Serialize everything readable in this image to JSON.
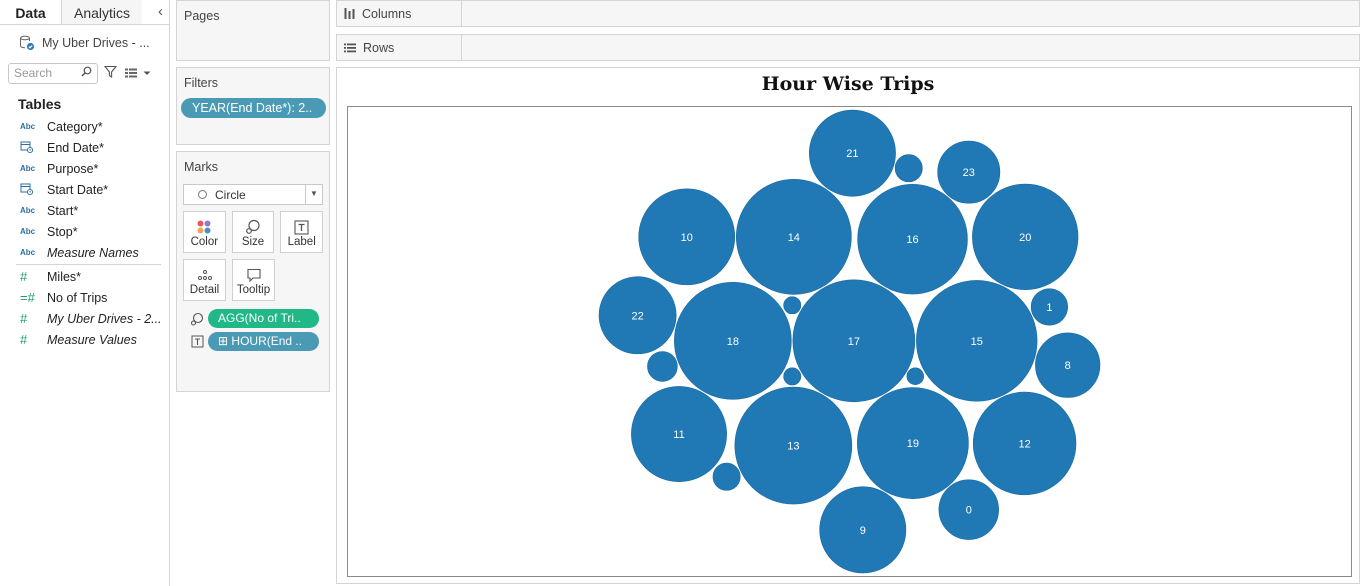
{
  "data_pane": {
    "tab_data": "Data",
    "tab_analytics": "Analytics",
    "datasource": "My Uber Drives - ...",
    "search_placeholder": "Search",
    "tables_title": "Tables",
    "fields": [
      {
        "type": "Abc",
        "label": "Category*"
      },
      {
        "type": "date",
        "label": "End Date*"
      },
      {
        "type": "Abc",
        "label": "Purpose*"
      },
      {
        "type": "date",
        "label": "Start Date*"
      },
      {
        "type": "Abc",
        "label": "Start*"
      },
      {
        "type": "Abc",
        "label": "Stop*"
      },
      {
        "type": "Abc",
        "label": "Measure Names"
      },
      {
        "type": "#",
        "label": "Miles*"
      },
      {
        "type": "=#",
        "label": "No of Trips"
      },
      {
        "type": "#",
        "label": "My Uber Drives - 2..."
      },
      {
        "type": "#",
        "label": "Measure Values"
      }
    ]
  },
  "cards": {
    "pages_title": "Pages",
    "filters_title": "Filters",
    "filter_pill": "YEAR(End Date*): 2..",
    "marks_title": "Marks",
    "mark_type": "Circle",
    "mark_buttons": [
      "Color",
      "Size",
      "Label",
      "Detail",
      "Tooltip"
    ],
    "mark_pill_size": "AGG(No of Tri..",
    "mark_pill_label": "HOUR(End ..",
    "mark_pill_label_prefix": "⊞"
  },
  "shelves": {
    "columns": "Columns",
    "rows": "Rows"
  },
  "view": {
    "title": "Hour Wise Trips"
  },
  "colors": {
    "bubble": "#2078b4",
    "green_pill": "#1fb886",
    "blue_pill": "#4a9ab6"
  },
  "chart_data": {
    "type": "packed-bubble",
    "title": "Hour Wise Trips",
    "size_measure": "AGG(No of Trips)",
    "label_dimension": "HOUR(End Date*)",
    "bubbles": [
      {
        "label": "17",
        "value": 100
      },
      {
        "label": "18",
        "value": 92
      },
      {
        "label": "15",
        "value": 98
      },
      {
        "label": "13",
        "value": 92
      },
      {
        "label": "14",
        "value": 89
      },
      {
        "label": "16",
        "value": 81
      },
      {
        "label": "19",
        "value": 83
      },
      {
        "label": "20",
        "value": 75
      },
      {
        "label": "12",
        "value": 71
      },
      {
        "label": "10",
        "value": 62
      },
      {
        "label": "11",
        "value": 61
      },
      {
        "label": "21",
        "value": 50
      },
      {
        "label": "9",
        "value": 50
      },
      {
        "label": "22",
        "value": 40
      },
      {
        "label": "0",
        "value": 24
      },
      {
        "label": "23",
        "value": 26
      },
      {
        "label": "8",
        "value": 28
      },
      {
        "label": "1",
        "value": 9
      },
      {
        "label": "",
        "value": 6
      },
      {
        "label": "",
        "value": 5
      },
      {
        "label": "",
        "value": 5
      },
      {
        "label": "",
        "value": 2
      },
      {
        "label": "",
        "value": 2
      },
      {
        "label": "",
        "value": 1.9
      }
    ]
  }
}
